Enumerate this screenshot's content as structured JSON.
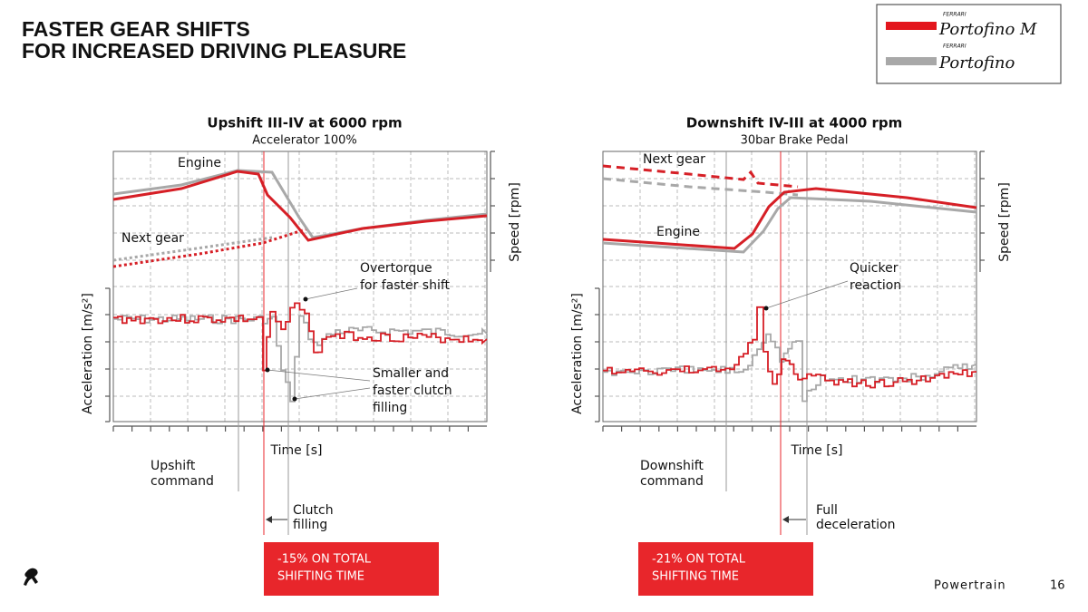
{
  "header": {
    "title_lines": [
      "FASTER GEAR SHIFTS",
      "FOR INCREASED DRIVING PLEASURE"
    ]
  },
  "legend": {
    "items": [
      {
        "brand": "FERRARI",
        "name": "Portofino M"
      },
      {
        "brand": "FERRARI",
        "name": "Portofino"
      }
    ]
  },
  "panels": [
    {
      "title": "Upshift III-IV at 6000 rpm",
      "subtitle": "Accelerator 100%",
      "y_label_left": "Acceleration [m/s²]",
      "y_label_right": "Speed [rpm]",
      "x_label": "Time [s]",
      "curve_labels": {
        "engine": "Engine",
        "next_gear": "Next gear"
      },
      "annotations": [
        {
          "lines": [
            "Overtorque",
            "for faster shift"
          ]
        },
        {
          "lines": [
            "Smaller and",
            "faster clutch",
            "filling"
          ]
        }
      ],
      "command": [
        "Upshift",
        "command"
      ],
      "delay": [
        "Clutch",
        "filling"
      ],
      "result": [
        "-15% ON TOTAL",
        "SHIFTING TIME"
      ]
    },
    {
      "title": "Downshift IV-III at 4000 rpm",
      "subtitle": "30bar Brake Pedal",
      "y_label_left": "Acceleration [m/s²]",
      "y_label_right": "Speed [rpm]",
      "x_label": "Time [s]",
      "curve_labels": {
        "engine": "Engine",
        "next_gear": "Next gear"
      },
      "annotations": [
        {
          "lines": [
            "Quicker",
            "reaction"
          ]
        }
      ],
      "command": [
        "Downshift",
        "command"
      ],
      "delay": [
        "Full",
        "deceleration"
      ],
      "result": [
        "-21% ON TOTAL",
        "SHIFTING TIME"
      ]
    }
  ],
  "footer": {
    "section": "Powertrain",
    "page": "16"
  }
}
